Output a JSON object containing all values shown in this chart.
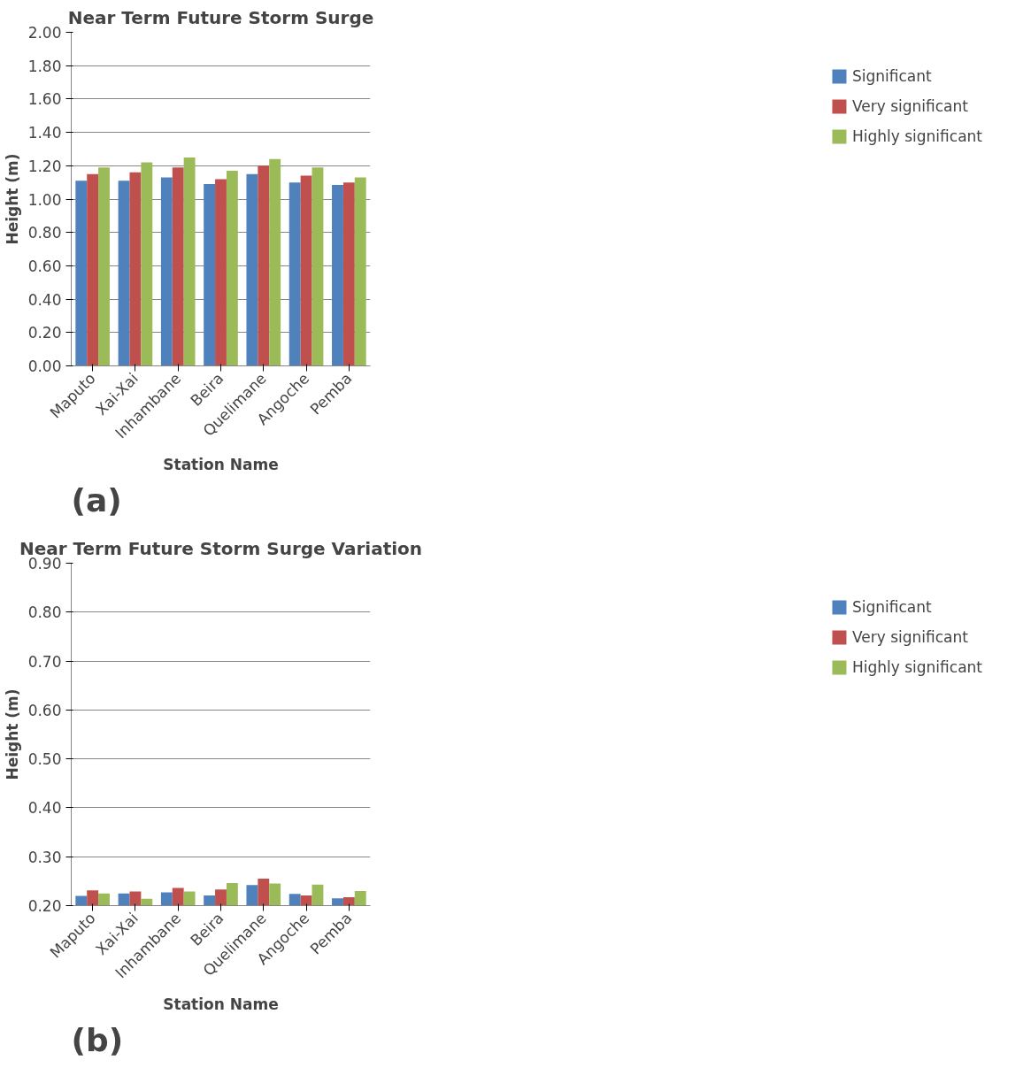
{
  "chart_data": [
    {
      "type": "bar",
      "title": "Near Term Future Storm Surge",
      "xlabel": "Station Name",
      "ylabel": "Height (m)",
      "categories": [
        "Maputo",
        "Xai-Xai",
        "Inhambane",
        "Beira",
        "Quelimane",
        "Angoche",
        "Pemba"
      ],
      "series": [
        {
          "name": "Significant",
          "color": "#4f81bd",
          "values": [
            1.11,
            1.11,
            1.13,
            1.09,
            1.15,
            1.1,
            1.085
          ]
        },
        {
          "name": "Very significant",
          "color": "#c0504d",
          "values": [
            1.15,
            1.16,
            1.19,
            1.12,
            1.2,
            1.14,
            1.1
          ]
        },
        {
          "name": "Highly significant",
          "color": "#9bbb59",
          "values": [
            1.19,
            1.22,
            1.25,
            1.17,
            1.24,
            1.19,
            1.13
          ]
        }
      ],
      "ylim": [
        0,
        2
      ],
      "yticks": [
        {
          "value": 0,
          "label": "0.00"
        },
        {
          "value": 0.2,
          "label": "0.20"
        },
        {
          "value": 0.4,
          "label": "0.40"
        },
        {
          "value": 0.6,
          "label": "0.60"
        },
        {
          "value": 0.8,
          "label": "0.80"
        },
        {
          "value": 1.0,
          "label": "1.00"
        },
        {
          "value": 1.2,
          "label": "1.20"
        },
        {
          "value": 1.4,
          "label": "1.40"
        },
        {
          "value": 1.6,
          "label": "1.60"
        },
        {
          "value": 1.8,
          "label": "1.80"
        },
        {
          "value": 2.0,
          "label": "2.00"
        }
      ],
      "grid": "y",
      "legend": "right",
      "annotations": [
        "(a)"
      ]
    },
    {
      "type": "bar",
      "title": "Near Term Future Storm Surge Variation",
      "xlabel": "Station Name",
      "ylabel": "Height (m)",
      "categories": [
        "Maputo",
        "Xai-Xai",
        "Inhambane",
        "Beira",
        "Quelimane",
        "Angoche",
        "Pemba"
      ],
      "series": [
        {
          "name": "Significant",
          "color": "#4f81bd",
          "values": [
            0.22,
            0.225,
            0.227,
            0.221,
            0.242,
            0.224,
            0.215
          ]
        },
        {
          "name": "Very significant",
          "color": "#c0504d",
          "values": [
            0.231,
            0.229,
            0.236,
            0.233,
            0.255,
            0.221,
            0.217
          ]
        },
        {
          "name": "Highly significant",
          "color": "#9bbb59",
          "values": [
            0.225,
            0.214,
            0.229,
            0.246,
            0.245,
            0.243,
            0.23
          ]
        }
      ],
      "ylim": [
        0.2,
        0.9
      ],
      "yticks": [
        {
          "value": 0.2,
          "label": "0.20"
        },
        {
          "value": 0.3,
          "label": "0.30"
        },
        {
          "value": 0.4,
          "label": "0.40"
        },
        {
          "value": 0.5,
          "label": "0.50"
        },
        {
          "value": 0.6,
          "label": "0.60"
        },
        {
          "value": 0.7,
          "label": "0.70"
        },
        {
          "value": 0.8,
          "label": "0.80"
        },
        {
          "value": 0.9,
          "label": "0.90"
        }
      ],
      "grid": "y",
      "legend": "right",
      "annotations": [
        "(b)"
      ]
    }
  ]
}
